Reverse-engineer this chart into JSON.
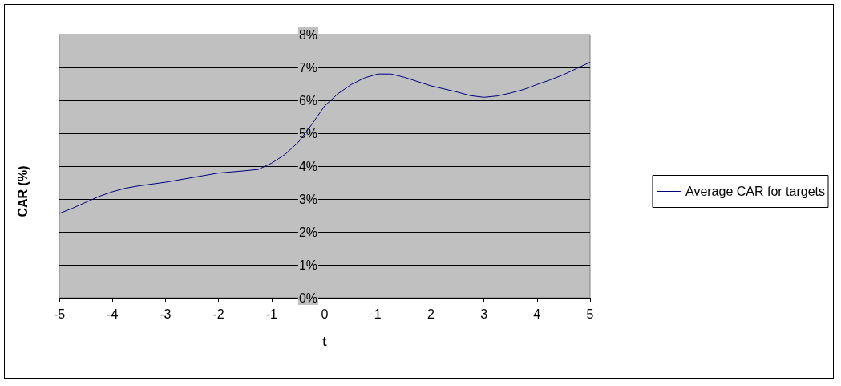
{
  "chart_data": {
    "type": "line",
    "xlabel": "t",
    "ylabel": "CAR (%)",
    "x": [
      -5,
      -4.75,
      -4.5,
      -4.25,
      -4,
      -3.75,
      -3.5,
      -3,
      -2.5,
      -2,
      -1.5,
      -1.25,
      -1,
      -0.75,
      -0.5,
      -0.25,
      0,
      0.25,
      0.5,
      0.75,
      1,
      1.25,
      1.5,
      2,
      2.5,
      2.75,
      3,
      3.25,
      3.5,
      3.75,
      4,
      4.25,
      4.5,
      4.75,
      5
    ],
    "series": [
      {
        "name": "Average CAR for targets",
        "color": "#000080",
        "values": [
          2.56,
          2.72,
          2.9,
          3.08,
          3.22,
          3.33,
          3.4,
          3.51,
          3.65,
          3.79,
          3.86,
          3.9,
          4.09,
          4.35,
          4.72,
          5.25,
          5.83,
          6.2,
          6.48,
          6.68,
          6.8,
          6.8,
          6.7,
          6.44,
          6.25,
          6.14,
          6.09,
          6.13,
          6.22,
          6.33,
          6.48,
          6.62,
          6.78,
          6.97,
          7.16
        ]
      }
    ],
    "xlim": [
      -5,
      5
    ],
    "xticks": [
      -5,
      -4,
      -3,
      -2,
      -1,
      0,
      1,
      2,
      3,
      4,
      5
    ],
    "ylim": [
      0,
      8
    ],
    "yticks": [
      {
        "value": 0,
        "label": "0%"
      },
      {
        "value": 1,
        "label": "1%"
      },
      {
        "value": 2,
        "label": "2%"
      },
      {
        "value": 3,
        "label": "3%"
      },
      {
        "value": 4,
        "label": "4%"
      },
      {
        "value": 5,
        "label": "5%"
      },
      {
        "value": 6,
        "label": "6%"
      },
      {
        "value": 7,
        "label": "7%"
      },
      {
        "value": 8,
        "label": "8%"
      }
    ],
    "grid": "y",
    "legend": "right",
    "marker": "none",
    "line_style": "solid"
  }
}
